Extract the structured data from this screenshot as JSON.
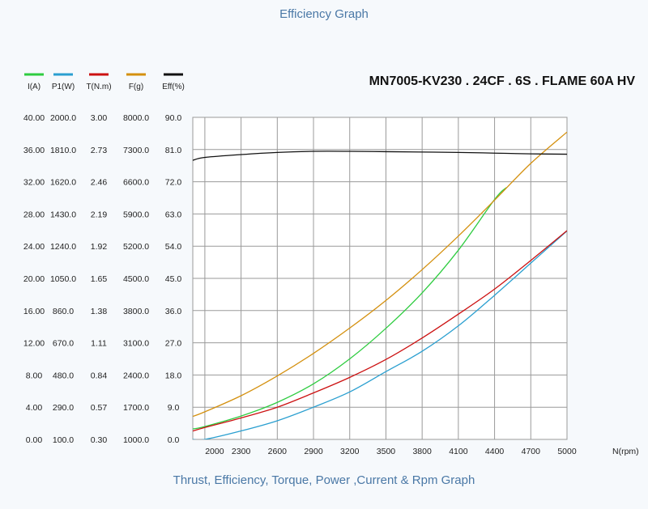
{
  "header": {
    "title": "Efficiency Graph",
    "model": "MN7005-KV230 . 24CF . 6S . FLAME 60A HV",
    "caption": "Thrust, Efficiency, Torque, Power ,Current & Rpm Graph"
  },
  "colors": {
    "current": "#2ecc40",
    "power": "#2a9fd0",
    "torque": "#cc1111",
    "thrust": "#d4900e",
    "efficiency": "#111111",
    "grid": "#9a9a9a",
    "plot_bg": "#ffffff"
  },
  "chart_data": {
    "type": "line",
    "title": "Efficiency Graph",
    "xlabel": "N(rpm)",
    "x_ticks": [
      2000,
      2300,
      2600,
      2900,
      3200,
      3500,
      3800,
      4100,
      4400,
      4700,
      5000
    ],
    "xlim": [
      1900,
      5000
    ],
    "grid": true,
    "legend_position": "top-left",
    "axes": [
      {
        "name": "I(A)",
        "ticks": [
          "0.00",
          "4.00",
          "8.00",
          "12.00",
          "16.00",
          "20.00",
          "24.00",
          "28.00",
          "32.00",
          "36.00",
          "40.00"
        ],
        "ylim": [
          0,
          40
        ]
      },
      {
        "name": "P1(W)",
        "ticks": [
          "100.0",
          "290.0",
          "480.0",
          "670.0",
          "860.0",
          "1050.0",
          "1240.0",
          "1430.0",
          "1620.0",
          "1810.0",
          "2000.0"
        ],
        "ylim": [
          100,
          2000
        ]
      },
      {
        "name": "T(N.m)",
        "ticks": [
          "0.30",
          "0.57",
          "0.84",
          "1.11",
          "1.38",
          "1.65",
          "1.92",
          "2.19",
          "2.46",
          "2.73",
          "3.00"
        ],
        "ylim": [
          0.3,
          3.0
        ]
      },
      {
        "name": "F(g)",
        "ticks": [
          "1000.0",
          "1700.0",
          "2400.0",
          "3100.0",
          "3800.0",
          "4500.0",
          "5200.0",
          "5900.0",
          "6600.0",
          "7300.0",
          "8000.0"
        ],
        "ylim": [
          1000,
          8000
        ]
      },
      {
        "name": "Eff(%)",
        "ticks": [
          "0.0",
          "9.0",
          "18.0",
          "27.0",
          "36.0",
          "45.0",
          "54.0",
          "63.0",
          "72.0",
          "81.0",
          "90.0"
        ],
        "ylim": [
          0,
          90
        ]
      }
    ],
    "series": [
      {
        "name": "I(A)",
        "color_key": "current",
        "axis": 0,
        "x": [
          1900,
          2000,
          2300,
          2600,
          2900,
          3200,
          3500,
          3800,
          4100,
          4400,
          4500
        ],
        "y": [
          1.3,
          1.6,
          2.9,
          4.6,
          6.9,
          10.0,
          13.8,
          18.2,
          23.5,
          29.8,
          31.3
        ]
      },
      {
        "name": "P1(W)",
        "color_key": "power",
        "axis": 1,
        "x": [
          1900,
          2000,
          2300,
          2600,
          2900,
          3200,
          3500,
          3800,
          4100,
          4400,
          4700,
          5000
        ],
        "y": [
          100,
          100,
          150,
          210,
          290,
          380,
          500,
          620,
          770,
          950,
          1140,
          1330
        ]
      },
      {
        "name": "T(N.m)",
        "color_key": "torque",
        "axis": 2,
        "x": [
          1900,
          2000,
          2300,
          2600,
          2900,
          3200,
          3500,
          3800,
          4100,
          4400,
          4700,
          5000
        ],
        "y": [
          0.37,
          0.4,
          0.48,
          0.57,
          0.69,
          0.82,
          0.97,
          1.15,
          1.35,
          1.56,
          1.8,
          2.05
        ]
      },
      {
        "name": "F(g)",
        "color_key": "thrust",
        "axis": 3,
        "x": [
          1900,
          2000,
          2300,
          2600,
          2900,
          3200,
          3500,
          3800,
          4100,
          4400,
          4700,
          5000
        ],
        "y": [
          1500,
          1600,
          1950,
          2380,
          2870,
          3420,
          4020,
          4690,
          5420,
          6200,
          7000,
          7680
        ]
      },
      {
        "name": "Eff(%)",
        "color_key": "efficiency",
        "axis": 4,
        "x": [
          1900,
          2000,
          2300,
          2600,
          2900,
          3200,
          3500,
          3800,
          4100,
          4400,
          4700,
          5000
        ],
        "y": [
          78.0,
          78.8,
          79.6,
          80.2,
          80.5,
          80.5,
          80.4,
          80.3,
          80.2,
          80.0,
          79.8,
          79.7
        ]
      }
    ]
  }
}
